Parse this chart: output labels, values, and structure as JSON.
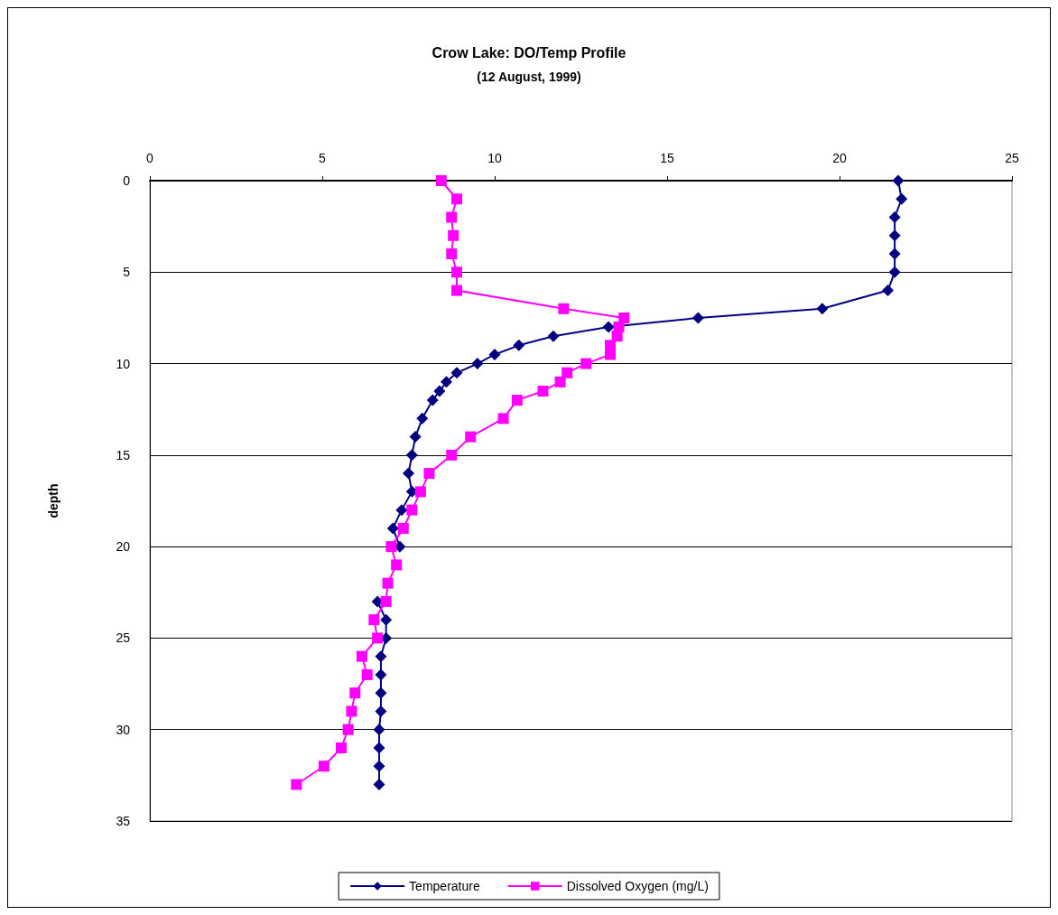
{
  "chart_data": {
    "type": "line",
    "title": "Crow Lake: DO/Temp Profile",
    "subtitle": "(12 August, 1999)",
    "ylabel": "depth",
    "orientation": "horizontal",
    "xlim": [
      0,
      25
    ],
    "xticks": [
      0,
      5,
      10,
      15,
      20,
      25
    ],
    "ylim": [
      35,
      0
    ],
    "yticks": [
      0,
      5,
      10,
      15,
      20,
      25,
      30,
      35
    ],
    "grid": "y",
    "legend": "bottom",
    "series": [
      {
        "name": "Temperature",
        "color": "#000080",
        "marker": "diamond",
        "x": [
          0,
          1,
          2,
          3,
          4,
          5,
          6,
          7,
          7.5,
          8,
          8.5,
          9,
          9.5,
          10,
          10.5,
          11,
          11.5,
          12,
          13,
          14,
          15,
          16,
          17,
          18,
          19,
          20,
          21,
          22,
          23,
          24,
          25,
          26,
          27,
          28,
          29,
          30,
          31,
          32,
          33
        ],
        "values": [
          21.7,
          21.8,
          21.6,
          21.6,
          21.6,
          21.6,
          21.4,
          19.5,
          15.9,
          13.3,
          11.7,
          10.7,
          10,
          9.5,
          8.9,
          8.6,
          8.4,
          8.2,
          7.9,
          7.7,
          7.6,
          7.5,
          7.6,
          7.3,
          7.05,
          7.25,
          null,
          null,
          6.6,
          6.85,
          6.85,
          6.7,
          6.7,
          6.7,
          6.7,
          6.65,
          6.65,
          6.65,
          6.65
        ]
      },
      {
        "name": "Dissolved Oxygen (mg/L)",
        "color": "#ff00ff",
        "marker": "square",
        "x": [
          0,
          1,
          2,
          3,
          4,
          5,
          6,
          7,
          7.5,
          8,
          8.5,
          9,
          9.5,
          10,
          10.5,
          11,
          11.5,
          12,
          13,
          14,
          15,
          16,
          17,
          18,
          19,
          20,
          21,
          22,
          23,
          24,
          25,
          26,
          27,
          28,
          29,
          30,
          31,
          32,
          33
        ],
        "values": [
          8.45,
          8.9,
          8.75,
          8.8,
          8.75,
          8.9,
          8.9,
          12,
          13.75,
          13.6,
          13.55,
          13.35,
          13.35,
          12.65,
          12.1,
          11.9,
          11.4,
          10.65,
          10.25,
          9.3,
          8.75,
          8.1,
          7.85,
          7.6,
          7.35,
          7,
          7.15,
          6.9,
          6.85,
          6.5,
          6.6,
          6.15,
          6.3,
          5.95,
          5.85,
          5.75,
          5.55,
          5.05,
          4.25
        ]
      }
    ]
  }
}
